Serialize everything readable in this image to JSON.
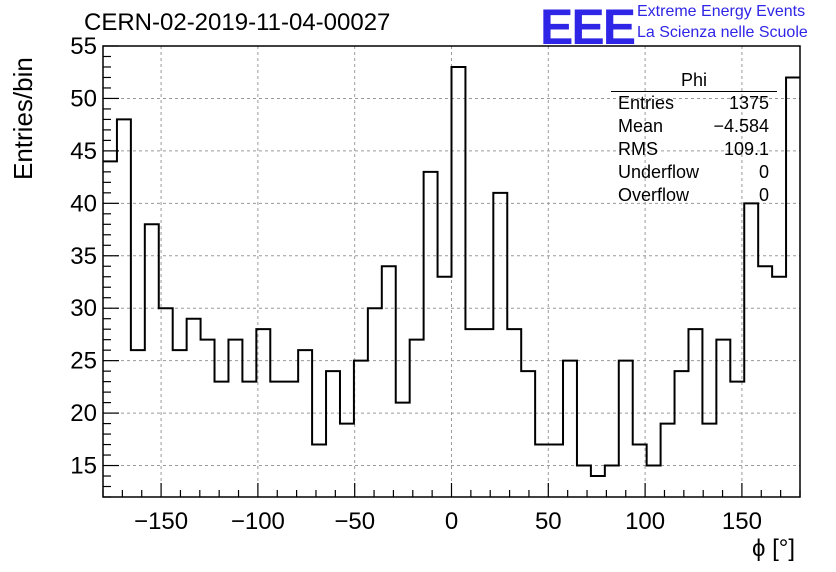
{
  "header": {
    "run_title": "CERN-02-2019-11-04-00027",
    "logo_text": "EEE",
    "brand_line1": "Extreme Energy Events",
    "brand_line2": "La Scienza nelle Scuole",
    "brand_color": "#2f25e6"
  },
  "stats": {
    "name": "Phi",
    "rows": [
      {
        "label": "Entries",
        "value": "1375"
      },
      {
        "label": "Mean",
        "value": "−4.584"
      },
      {
        "label": "RMS",
        "value": "109.1"
      },
      {
        "label": "Underflow",
        "value": "0"
      },
      {
        "label": "Overflow",
        "value": "0"
      }
    ]
  },
  "chart_data": {
    "type": "bar",
    "histogram": true,
    "title": "CERN-02-2019-11-04-00027",
    "xlabel": "ϕ [°]",
    "ylabel": "Entries/bin",
    "xlim": [
      -180,
      180
    ],
    "ylim": [
      12,
      55
    ],
    "x_ticks": [
      -150,
      -100,
      -50,
      0,
      50,
      100,
      150
    ],
    "x_tick_labels": [
      "−150",
      "−100",
      "−50",
      "0",
      "50",
      "100",
      "150"
    ],
    "y_ticks": [
      15,
      20,
      25,
      30,
      35,
      40,
      45,
      50,
      55
    ],
    "grid": true,
    "bin_width": 7.2,
    "values": [
      44,
      48,
      26,
      38,
      30,
      26,
      29,
      27,
      23,
      27,
      23,
      28,
      23,
      23,
      26,
      17,
      24,
      19,
      25,
      30,
      34,
      21,
      27,
      43,
      33,
      53,
      28,
      28,
      41,
      28,
      24,
      17,
      17,
      25,
      15,
      14,
      15,
      25,
      17,
      15,
      19,
      24,
      28,
      19,
      27,
      23,
      40,
      34,
      33,
      52
    ],
    "line_color": "#000000"
  }
}
